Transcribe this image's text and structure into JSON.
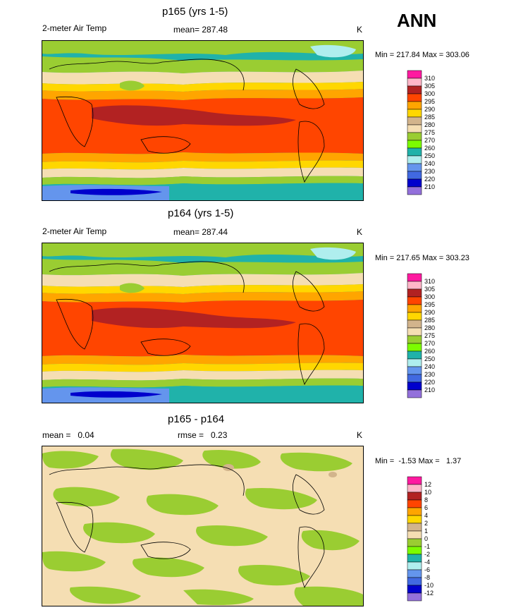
{
  "season_label": "ANN",
  "panels": [
    {
      "id": "p165",
      "title": "p165 (yrs 1-5)",
      "left_label": "2-meter Air Temp",
      "center_label": "mean= 287.48",
      "units": "K",
      "minmax": "Min = 217.84 Max = 303.06",
      "kind": "abs"
    },
    {
      "id": "p164",
      "title": "p164 (yrs 1-5)",
      "left_label": "2-meter Air Temp",
      "center_label": "mean= 287.44",
      "units": "K",
      "minmax": "Min = 217.65 Max = 303.23",
      "kind": "abs"
    },
    {
      "id": "diff",
      "title": "p165 - p164",
      "left_label": "mean =   0.04",
      "center_label": "rmse =   0.23",
      "units": "K",
      "minmax": "Min =  -1.53 Max =   1.37",
      "kind": "diff"
    }
  ],
  "colorbar_abs": {
    "labels": [
      "310",
      "305",
      "300",
      "295",
      "290",
      "285",
      "280",
      "275",
      "270",
      "260",
      "250",
      "240",
      "230",
      "220",
      "210"
    ],
    "colors": [
      "#ff1aa0",
      "#ffb6c8",
      "#b22222",
      "#ff4500",
      "#ffa500",
      "#ffd700",
      "#d2b48c",
      "#f5deb3",
      "#9acd32",
      "#7cfc00",
      "#20b2aa",
      "#afeeee",
      "#6495ed",
      "#4169e1",
      "#0000cd",
      "#9370db"
    ]
  },
  "colorbar_diff": {
    "labels": [
      "12",
      "10",
      "8",
      "6",
      "4",
      "2",
      "1",
      "0",
      "-1",
      "-2",
      "-4",
      "-6",
      "-8",
      "-10",
      "-12"
    ],
    "colors": [
      "#ff1aa0",
      "#ffb6c8",
      "#b22222",
      "#ff4500",
      "#ffa500",
      "#ffd700",
      "#d2b48c",
      "#f5deb3",
      "#9acd32",
      "#7cfc00",
      "#20b2aa",
      "#afeeee",
      "#6495ed",
      "#4169e1",
      "#0000cd",
      "#9370db"
    ]
  }
}
